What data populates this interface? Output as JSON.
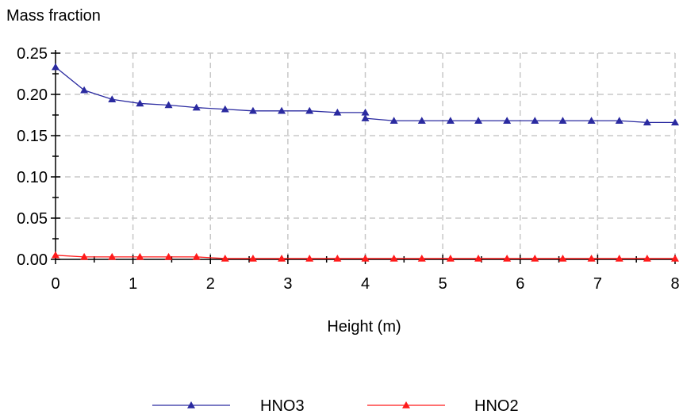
{
  "chart_data": {
    "type": "line",
    "title": "",
    "xlabel": "Height (m)",
    "ylabel": "Mass fraction",
    "xlim": [
      0,
      8
    ],
    "ylim": [
      0,
      0.25
    ],
    "xticks": [
      "0",
      "1",
      "2",
      "3",
      "4",
      "5",
      "6",
      "7",
      "8"
    ],
    "yticks": [
      "0.00",
      "0.05",
      "0.10",
      "0.15",
      "0.20",
      "0.25"
    ],
    "grid": true,
    "legend_position": "bottom",
    "series": [
      {
        "name": "HNO3",
        "color": "#2a2aa0",
        "marker": "triangle",
        "x": [
          0,
          0.37,
          0.73,
          1.09,
          1.46,
          1.82,
          2.19,
          2.55,
          2.92,
          3.28,
          3.64,
          4.0,
          4.0,
          4.37,
          4.73,
          5.1,
          5.46,
          5.83,
          6.19,
          6.55,
          6.92,
          7.28,
          7.64,
          8.0
        ],
        "y": [
          0.233,
          0.205,
          0.194,
          0.189,
          0.187,
          0.184,
          0.182,
          0.18,
          0.18,
          0.18,
          0.178,
          0.178,
          0.171,
          0.168,
          0.168,
          0.168,
          0.168,
          0.168,
          0.168,
          0.168,
          0.168,
          0.168,
          0.166,
          0.166
        ]
      },
      {
        "name": "HNO2",
        "color": "#ff1a1a",
        "marker": "triangle",
        "x": [
          0,
          0.37,
          0.73,
          1.09,
          1.46,
          1.82,
          2.19,
          2.55,
          2.92,
          3.28,
          3.64,
          4.0,
          4.37,
          4.73,
          5.1,
          5.46,
          5.83,
          6.19,
          6.55,
          6.92,
          7.28,
          7.64,
          8.0
        ],
        "y": [
          0.005,
          0.003,
          0.003,
          0.003,
          0.003,
          0.003,
          0.001,
          0.001,
          0.001,
          0.001,
          0.001,
          0.001,
          0.001,
          0.001,
          0.001,
          0.001,
          0.001,
          0.001,
          0.001,
          0.001,
          0.001,
          0.001,
          0.001
        ]
      }
    ]
  }
}
